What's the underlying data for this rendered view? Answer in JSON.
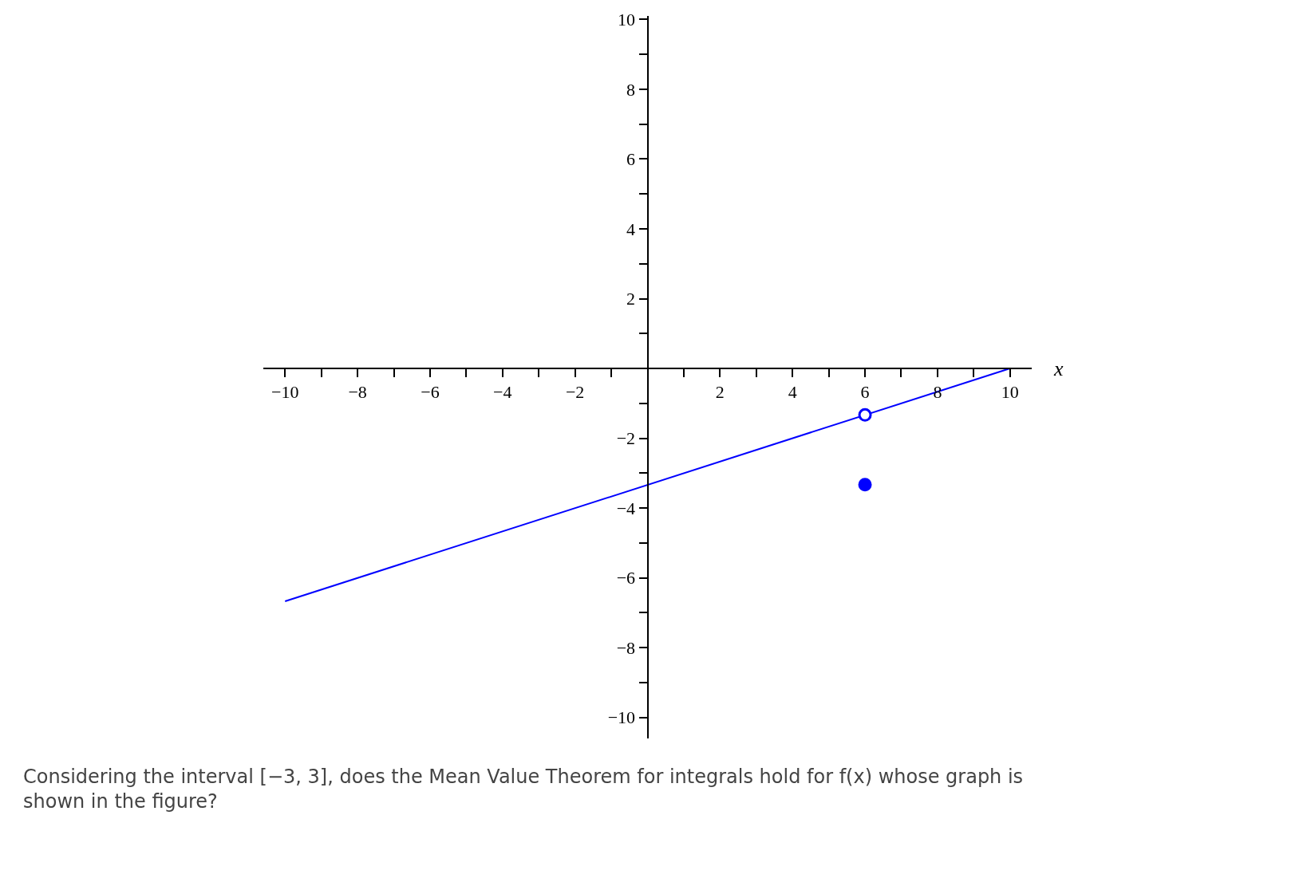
{
  "chart_data": {
    "type": "line",
    "xlabel": "x",
    "series": [
      {
        "color": "#0000ff",
        "x": [
          -10,
          10
        ],
        "values": [
          -6.67,
          0
        ],
        "marker": "none"
      },
      {
        "type": "scatter",
        "color": "#0000ff",
        "x": [
          6
        ],
        "values": [
          -1.33
        ],
        "marker": "circle-open"
      },
      {
        "type": "scatter",
        "color": "#0000ff",
        "x": [
          6
        ],
        "values": [
          -3.33
        ],
        "marker": "circle"
      }
    ],
    "xlim": [
      -10.6,
      10.6
    ],
    "ylim": [
      -10.6,
      10.1
    ],
    "xticks": [
      -10,
      {
        "value": -9,
        "label": null
      },
      -8,
      {
        "value": -7,
        "label": null
      },
      -6,
      {
        "value": -5,
        "label": null
      },
      -4,
      {
        "value": -3,
        "label": null
      },
      -2,
      {
        "value": -1,
        "label": null
      },
      {
        "value": 1,
        "label": null
      },
      2,
      {
        "value": 3,
        "label": null
      },
      4,
      {
        "value": 5,
        "label": null
      },
      6,
      {
        "value": 7,
        "label": null
      },
      8,
      {
        "value": 9,
        "label": null
      },
      10
    ],
    "yticks": [
      -10,
      {
        "value": -9,
        "label": null
      },
      -8,
      {
        "value": -7,
        "label": null
      },
      -6,
      {
        "value": -5,
        "label": null
      },
      -4,
      {
        "value": -3,
        "label": null
      },
      -2,
      {
        "value": -1,
        "label": null
      },
      {
        "value": 1,
        "label": null
      },
      2,
      {
        "value": 3,
        "label": null
      },
      4,
      {
        "value": 5,
        "label": null
      },
      6,
      {
        "value": 7,
        "label": null
      },
      8,
      {
        "value": 9,
        "label": null
      },
      10
    ],
    "legend": false,
    "annotations": [
      "Considering the interval [−3, 3], does the Mean Value Theorem for integrals hold for f(x) whose graph is shown in the figure?"
    ]
  }
}
